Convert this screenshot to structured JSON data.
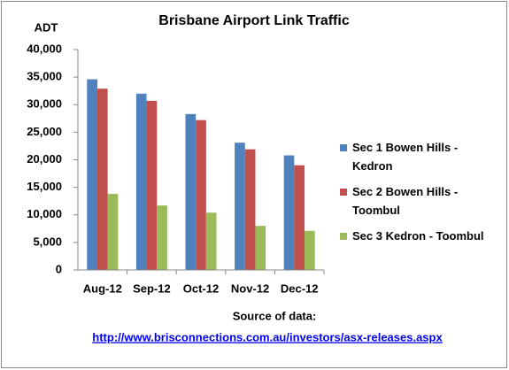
{
  "chart_data": {
    "type": "bar",
    "title": "Brisbane Airport Link Traffic",
    "y_label": "ADT",
    "categories": [
      "Aug-12",
      "Sep-12",
      "Oct-12",
      "Nov-12",
      "Dec-12"
    ],
    "series": [
      {
        "name": "Sec 1 Bowen Hills - Kedron",
        "color": "#4f81bd",
        "values": [
          34600,
          32000,
          28300,
          23100,
          20800
        ]
      },
      {
        "name": "Sec 2 Bowen Hills - Toombul",
        "color": "#c0504d",
        "values": [
          32900,
          30700,
          27200,
          21900,
          19000
        ]
      },
      {
        "name": "Sec 3 Kedron - Toombul",
        "color": "#9bbb59",
        "values": [
          13800,
          11700,
          10400,
          8000,
          7100
        ]
      }
    ],
    "ylim": [
      0,
      40000
    ],
    "yticks": [
      0,
      {
        "value": 5000,
        "label": "5,000"
      },
      {
        "value": 10000,
        "label": "10,000"
      },
      {
        "value": 15000,
        "label": "15,000"
      },
      {
        "value": 20000,
        "label": "20,000"
      },
      {
        "value": 25000,
        "label": "25,000"
      },
      {
        "value": 30000,
        "label": "30,000"
      },
      {
        "value": 35000,
        "label": "35,000"
      },
      {
        "value": 40000,
        "label": "40,000"
      }
    ],
    "legend": "right",
    "grid": false,
    "source_label": "Source of data:",
    "source_url": "http://www.brisconnections.com.au/investors/asx-releases.aspx"
  }
}
